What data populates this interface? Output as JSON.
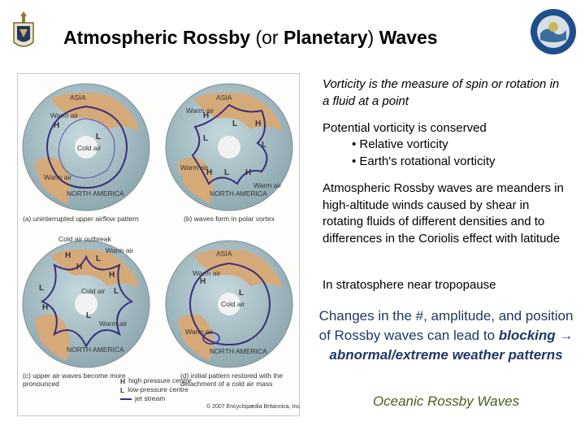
{
  "header": {
    "title_main": "Atmospheric Rossby",
    "title_paren_open": " (or ",
    "title_planetary": "Planetary",
    "title_paren_close": ") ",
    "title_waves": "Waves"
  },
  "figure": {
    "panels": [
      {
        "caption": "(a) uninterrupted upper airflow pattern",
        "labels": [
          "ASIA",
          "Warm air",
          "Cold air",
          "Warm air",
          "NORTH AMERICA"
        ],
        "pressure": [
          "H",
          "L"
        ]
      },
      {
        "caption": "(b) waves form in polar vortex",
        "labels": [
          "ASIA",
          "Warm air",
          "Warm air",
          "Warm air",
          "NORTH AMERICA"
        ],
        "pressure": [
          "H",
          "L",
          "H",
          "L",
          "L",
          "H",
          "L",
          "H"
        ]
      },
      {
        "caption": "(c) upper air waves become more pronounced",
        "labels": [
          "Cold air outbreak",
          "Warm air",
          "Cold air",
          "Warm air",
          "NORTH AMERICA"
        ],
        "pressure": [
          "H",
          "L",
          "H",
          "L",
          "L",
          "H",
          "L",
          "H"
        ]
      },
      {
        "caption": "(d) initial pattern restored with the detachment of a cold air mass",
        "labels": [
          "ASIA",
          "Warm air",
          "Cold air",
          "Warm air",
          "NORTH AMERICA"
        ],
        "pressure": [
          "H",
          "L"
        ]
      }
    ],
    "legend": [
      {
        "symbol": "H",
        "text": "high pressure centre"
      },
      {
        "symbol": "L",
        "text": "low-pressure centre"
      },
      {
        "symbol": "jet",
        "text": "jet stream"
      }
    ],
    "copyright": "© 2007 Encyclopædia Britannica, Inc."
  },
  "content": {
    "p1": "Vorticity is the measure of spin or rotation in a fluid at a point",
    "p2_title": "Potential vorticity is conserved",
    "p2_bullets": [
      "• Relative vorticity",
      "• Earth's rotational vorticity"
    ],
    "p3": "Atmospheric Rossby waves are meanders in high-altitude winds caused by shear in rotating fluids of different densities and to differences in the Coriolis effect with latitude",
    "p4": "In stratosphere near tropopause",
    "p5_start": "Changes in the #, amplitude, and position of Rossby waves can lead to ",
    "p5_emph": "blocking → abnormal/extreme weather patterns",
    "link": "Oceanic Rossby Waves"
  },
  "colors": {
    "ocean": "#a9c2c9",
    "land": "#d6a978",
    "jet": "#3a2f7a",
    "text_blue": "#1f3864",
    "link_green": "#4a5c1a"
  }
}
